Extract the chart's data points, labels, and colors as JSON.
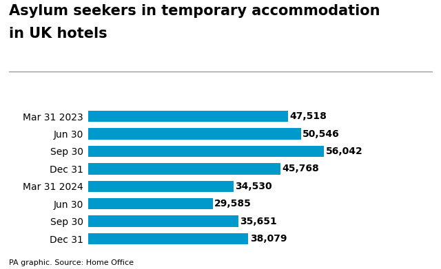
{
  "title_line1": "Asylum seekers in temporary accommodation",
  "title_line2": "in UK hotels",
  "categories": [
    "Mar 31 2023",
    "Jun 30",
    "Sep 30",
    "Dec 31",
    "Mar 31 2024",
    "Jun 30",
    "Sep 30",
    "Dec 31"
  ],
  "values": [
    47518,
    50546,
    56042,
    45768,
    34530,
    29585,
    35651,
    38079
  ],
  "labels": [
    "47,518",
    "50,546",
    "56,042",
    "45,768",
    "34,530",
    "29,585",
    "35,651",
    "38,079"
  ],
  "bar_color": "#0099cc",
  "title_fontsize": 15,
  "label_fontsize": 10,
  "tick_fontsize": 10,
  "source_fontsize": 8,
  "source_text": "PA graphic. Source: Home Office",
  "xlim": [
    0,
    65000
  ],
  "background_color": "#ffffff"
}
